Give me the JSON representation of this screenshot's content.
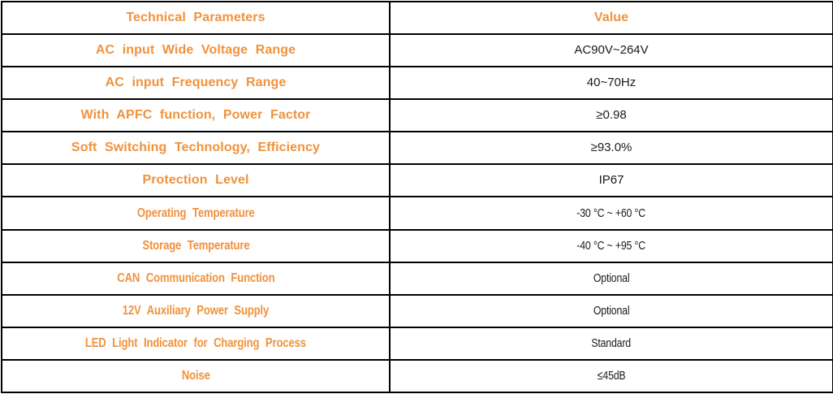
{
  "colors": {
    "accent": "#F0923D",
    "text": "#1A1A1A",
    "border": "#000000",
    "background": "#FFFFFF"
  },
  "table": {
    "headers": {
      "param": "Technical Parameters",
      "value": "Value"
    },
    "rows": [
      {
        "param": "AC input Wide Voltage Range",
        "value": "AC90V~264V"
      },
      {
        "param": "AC input Frequency Range",
        "value": "40~70Hz"
      },
      {
        "param": "With APFC function, Power Factor",
        "value": "≥0.98"
      },
      {
        "param": "Soft Switching Technology, Efficiency",
        "value": "≥93.0%"
      },
      {
        "param": "Protection Level",
        "value": "IP67"
      },
      {
        "param": "Operating Temperature",
        "value": "-30 °C ~ +60 °C"
      },
      {
        "param": "Storage Temperature",
        "value": "-40 °C ~ +95 °C"
      },
      {
        "param": "CAN Communication Function",
        "value": "Optional"
      },
      {
        "param": "12V Auxiliary Power Supply",
        "value": "Optional"
      },
      {
        "param": "LED Light Indicator for Charging Process",
        "value": "Standard"
      },
      {
        "param": "Noise",
        "value": "≤45dB"
      }
    ]
  }
}
